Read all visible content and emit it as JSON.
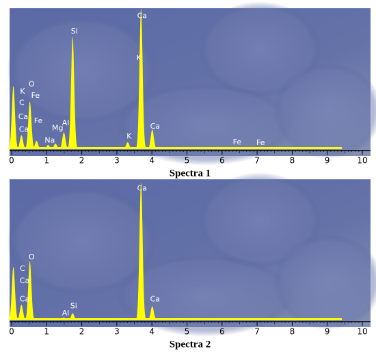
{
  "chart_data": [
    {
      "type": "spectrum",
      "caption": "Spectra 1",
      "color": "#ffff00",
      "x": [
        0.05,
        0.28,
        0.52,
        0.71,
        1.04,
        1.25,
        1.49,
        1.74,
        3.31,
        3.69,
        4.01,
        6.4,
        7.06
      ],
      "values": [
        45,
        10,
        34,
        6,
        3,
        4,
        12,
        80,
        5,
        100,
        14,
        1.5,
        1.5
      ],
      "annotations": [
        {
          "text": "K",
          "x": 0.31,
          "y": 41
        },
        {
          "text": "C",
          "x": 0.29,
          "y": 33
        },
        {
          "text": "Ca",
          "x": 0.33,
          "y": 23
        },
        {
          "text": "Ca",
          "x": 0.35,
          "y": 14
        },
        {
          "text": "O",
          "x": 0.57,
          "y": 46
        },
        {
          "text": "Fe",
          "x": 0.68,
          "y": 38
        },
        {
          "text": "Fe",
          "x": 0.76,
          "y": 20
        },
        {
          "text": "Na",
          "x": 1.09,
          "y": 6
        },
        {
          "text": "Mg",
          "x": 1.31,
          "y": 15
        },
        {
          "text": "Al",
          "x": 1.54,
          "y": 18.5
        },
        {
          "text": "Si",
          "x": 1.79,
          "y": 84
        },
        {
          "text": "K",
          "x": 3.35,
          "y": 9
        },
        {
          "text": "Ca",
          "x": 3.72,
          "y": 95
        },
        {
          "text": "K",
          "x": 3.63,
          "y": 65
        },
        {
          "text": "Ca",
          "x": 4.09,
          "y": 16
        },
        {
          "text": "Fe",
          "x": 6.43,
          "y": 5
        },
        {
          "text": "Fe",
          "x": 7.1,
          "y": 4.4
        }
      ],
      "xlim": [
        0,
        10
      ],
      "ylim": [
        0,
        100
      ],
      "xticks": [
        0,
        1,
        2,
        3,
        4,
        5,
        6,
        7,
        8,
        9,
        10
      ]
    },
    {
      "type": "spectrum",
      "caption": "Spectra 2",
      "color": "#ffff00",
      "x": [
        0.05,
        0.28,
        0.52,
        1.49,
        1.74,
        3.69,
        4.01
      ],
      "values": [
        38,
        11,
        42,
        2,
        5,
        98,
        10
      ],
      "annotations": [
        {
          "text": "C",
          "x": 0.31,
          "y": 36.5
        },
        {
          "text": "Ca",
          "x": 0.37,
          "y": 28
        },
        {
          "text": "Ca",
          "x": 0.37,
          "y": 15
        },
        {
          "text": "O",
          "x": 0.57,
          "y": 45
        },
        {
          "text": "Al",
          "x": 1.54,
          "y": 5
        },
        {
          "text": "Si",
          "x": 1.77,
          "y": 10
        },
        {
          "text": "Ca",
          "x": 3.72,
          "y": 94
        },
        {
          "text": "Ca",
          "x": 4.09,
          "y": 15
        }
      ],
      "xlim": [
        0,
        10
      ],
      "ylim": [
        0,
        100
      ],
      "xticks": [
        0,
        1,
        2,
        3,
        4,
        5,
        6,
        7,
        8,
        9,
        10
      ]
    }
  ]
}
